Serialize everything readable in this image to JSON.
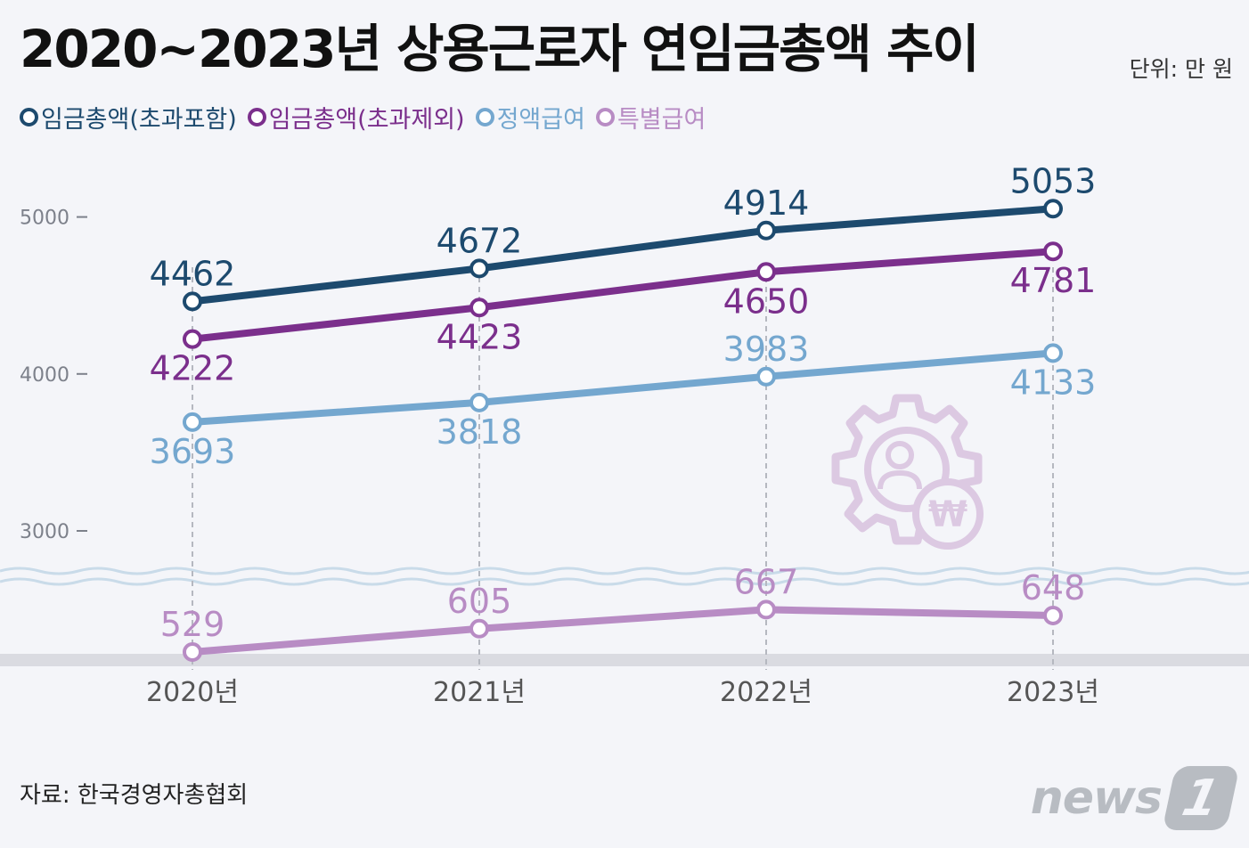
{
  "header": {
    "title": "2020~2023년 상용근로자 연임금총액 추이",
    "unit": "단위: 만 원"
  },
  "footer": {
    "source": "자료: 한국경영자총협회",
    "logo_text": "news",
    "logo_mark": "1"
  },
  "chart_data": {
    "type": "line",
    "categories": [
      "2020년",
      "2021년",
      "2022년",
      "2023년"
    ],
    "y_ticks": [
      "5000",
      "4000",
      "3000"
    ],
    "axis_break": true,
    "series": [
      {
        "name": "임금총액(초과포함)",
        "values": [
          4462,
          4672,
          4914,
          5053
        ],
        "color": "#1d4a6e",
        "labels": [
          "4462",
          "4672",
          "4914",
          "5053"
        ]
      },
      {
        "name": "임금총액(초과제외)",
        "values": [
          4222,
          4423,
          4650,
          4781
        ],
        "color": "#7b2f8c",
        "labels": [
          "4222",
          "4423",
          "4650",
          "4781"
        ]
      },
      {
        "name": "정액급여",
        "values": [
          3693,
          3818,
          3983,
          4133
        ],
        "color": "#74a7cf",
        "labels": [
          "3693",
          "3818",
          "3983",
          "4133"
        ]
      },
      {
        "name": "특별급여",
        "values": [
          529,
          605,
          667,
          648
        ],
        "color": "#b88cc4",
        "labels": [
          "529",
          "605",
          "667",
          "648"
        ]
      }
    ],
    "decor_icon": "gear-person-won-icon"
  }
}
